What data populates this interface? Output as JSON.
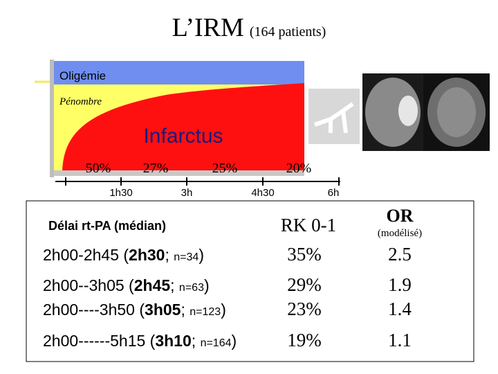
{
  "title": {
    "main": "L’IRM",
    "sub": "(164 patients)"
  },
  "diagram": {
    "zones": [
      "Oligémie",
      "Pénombre",
      "Infarctus"
    ],
    "percentages": [
      "50%",
      "27%",
      "25%",
      "20%"
    ],
    "times": [
      "1h30",
      "3h",
      "4h30",
      "6h"
    ]
  },
  "table": {
    "header": {
      "delay": "Délai rt-PA (médian)",
      "rk": "RK 0-1",
      "or": "OR",
      "or_note": "(modélisé)"
    },
    "rows": [
      {
        "range": "2h00-2h45 (",
        "median": "2h30",
        "sep": "; ",
        "n": "n=34",
        "close": ")",
        "rk": "35%",
        "or": "2.5"
      },
      {
        "range": "2h00--3h05 (",
        "median": "2h45",
        "sep": "; ",
        "n": "n=63",
        "close": ")",
        "rk": "29%",
        "or": "1.9"
      },
      {
        "range": "2h00----3h50 (",
        "median": "3h05",
        "sep": "; ",
        "n": "n=123",
        "close": ")",
        "rk": "23%",
        "or": "1.4"
      },
      {
        "range": "2h00------5h15 (",
        "median": "3h10",
        "sep": "; ",
        "n": "n=164",
        "close": ")",
        "rk": "19%",
        "or": "1.1"
      }
    ]
  }
}
